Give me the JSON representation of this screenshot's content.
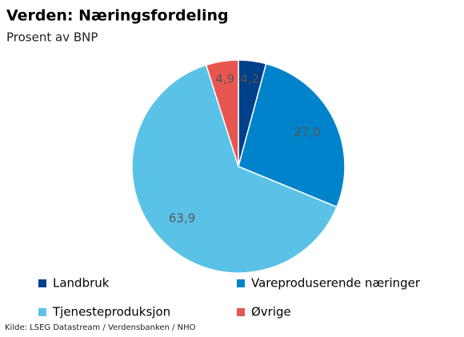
{
  "chart_data": {
    "type": "pie",
    "title": "Verden: Næringsfordeling",
    "subtitle": "Prosent av BNP",
    "categories": [
      "Landbruk",
      "Vareproduserende næringer",
      "Tjenesteproduksjon",
      "Øvrige"
    ],
    "values": [
      4.2,
      27.0,
      63.9,
      4.9
    ],
    "value_labels": [
      "4,2",
      "27,0",
      "63,9",
      "4,9"
    ],
    "colors": [
      "#003f8a",
      "#0083cb",
      "#5bc2e7",
      "#e8574f"
    ],
    "source": "Kilde: LSEG Datastream / Verdensbanken / NHO"
  }
}
